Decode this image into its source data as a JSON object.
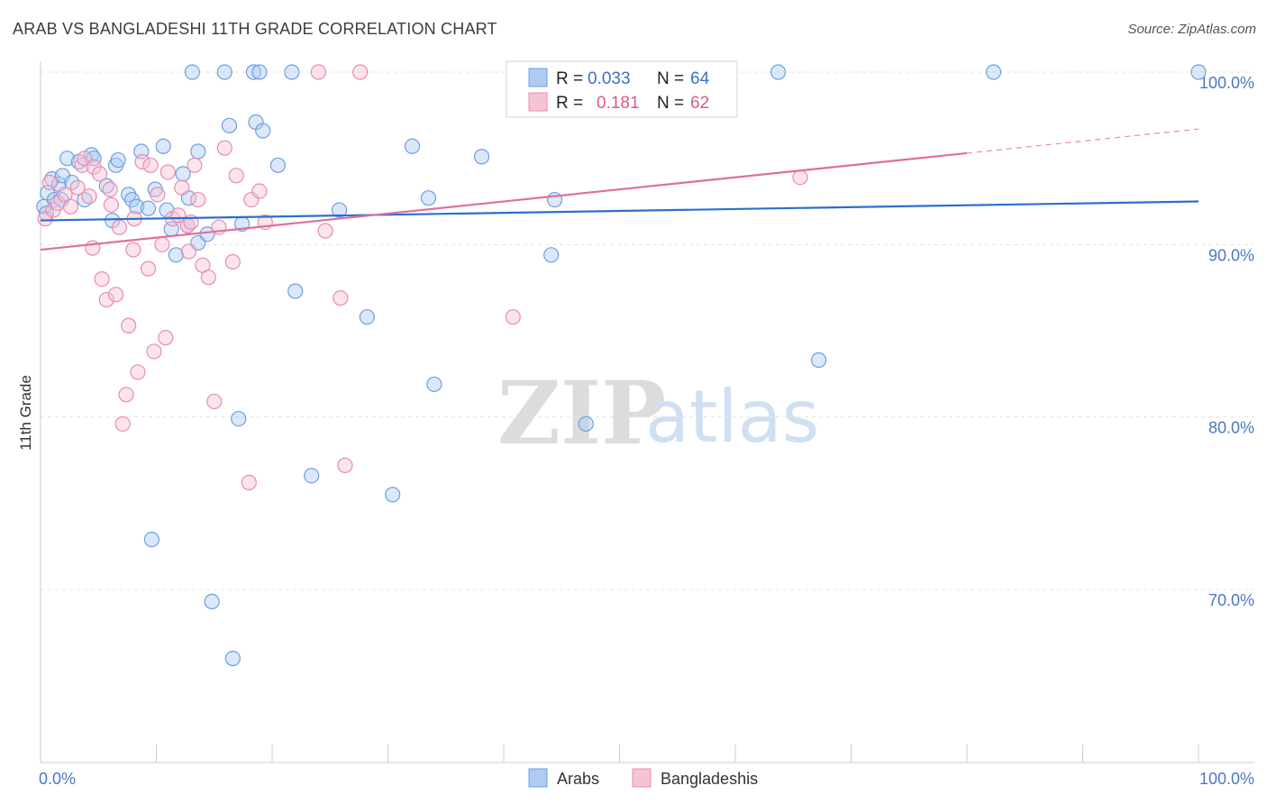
{
  "title": "ARAB VS BANGLADESHI 11TH GRADE CORRELATION CHART",
  "source": "Source: ZipAtlas.com",
  "watermark": {
    "zip": "ZIP",
    "atlas": "atlas"
  },
  "legend": {
    "r_label": "R =",
    "n_label": "N =",
    "rows": [
      {
        "series": "Arabs",
        "r": "0.033",
        "n": "64"
      },
      {
        "series": "Bangladeshis",
        "r": "0.181",
        "n": "62"
      }
    ]
  },
  "chart_data": {
    "type": "scatter",
    "title": "ARAB VS BANGLADESHI 11TH GRADE CORRELATION CHART",
    "xlabel": "",
    "ylabel": "11th Grade",
    "xlim": [
      0,
      100
    ],
    "ylim": [
      60.5,
      101.5
    ],
    "x_tick_labels": [
      "0.0%",
      "100.0%"
    ],
    "y_ticks": [
      70,
      80,
      90,
      100
    ],
    "y_tick_labels": [
      "70.0%",
      "80.0%",
      "90.0%",
      "100.0%"
    ],
    "grid": true,
    "legend_position": "top-center",
    "series": [
      {
        "name": "Arabs",
        "color": "#6f9fe0",
        "fill": "#aecbf1",
        "points": [
          [
            0.3,
            92.2
          ],
          [
            0.6,
            93.0
          ],
          [
            1.0,
            93.8
          ],
          [
            1.2,
            92.6
          ],
          [
            1.6,
            93.5
          ],
          [
            1.9,
            94.0
          ],
          [
            2.3,
            95.0
          ],
          [
            2.7,
            93.6
          ],
          [
            3.3,
            94.8
          ],
          [
            3.8,
            92.6
          ],
          [
            4.4,
            95.2
          ],
          [
            4.6,
            95.0
          ],
          [
            5.7,
            93.4
          ],
          [
            6.2,
            91.4
          ],
          [
            6.5,
            94.6
          ],
          [
            6.7,
            94.9
          ],
          [
            7.6,
            92.9
          ],
          [
            7.9,
            92.6
          ],
          [
            8.3,
            92.2
          ],
          [
            8.7,
            95.4
          ],
          [
            9.3,
            92.1
          ],
          [
            9.9,
            93.2
          ],
          [
            10.6,
            95.7
          ],
          [
            10.9,
            92.0
          ],
          [
            11.3,
            90.9
          ],
          [
            11.7,
            89.4
          ],
          [
            12.3,
            94.1
          ],
          [
            12.7,
            91.1
          ],
          [
            12.8,
            92.7
          ],
          [
            13.1,
            100.0
          ],
          [
            13.6,
            90.1
          ],
          [
            13.6,
            95.4
          ],
          [
            14.4,
            90.6
          ],
          [
            14.8,
            69.3
          ],
          [
            15.9,
            100.0
          ],
          [
            16.3,
            96.9
          ],
          [
            16.6,
            66.0
          ],
          [
            17.1,
            79.9
          ],
          [
            17.4,
            91.2
          ],
          [
            18.4,
            100.0
          ],
          [
            18.6,
            97.1
          ],
          [
            18.9,
            100.0
          ],
          [
            19.2,
            96.6
          ],
          [
            20.5,
            94.6
          ],
          [
            21.7,
            100.0
          ],
          [
            22.0,
            87.3
          ],
          [
            23.4,
            76.6
          ],
          [
            25.8,
            92.0
          ],
          [
            28.2,
            85.8
          ],
          [
            30.4,
            75.5
          ],
          [
            32.1,
            95.7
          ],
          [
            33.5,
            92.7
          ],
          [
            34.0,
            81.9
          ],
          [
            38.1,
            95.1
          ],
          [
            44.1,
            89.4
          ],
          [
            44.4,
            92.6
          ],
          [
            47.1,
            79.6
          ],
          [
            63.7,
            100.0
          ],
          [
            67.2,
            83.3
          ],
          [
            82.3,
            100.0
          ],
          [
            100.0,
            100.0
          ],
          [
            9.6,
            72.9
          ],
          [
            1.8,
            92.6
          ],
          [
            0.5,
            91.8
          ]
        ],
        "trend": {
          "x": [
            0,
            100
          ],
          "y": [
            91.4,
            92.5
          ]
        }
      },
      {
        "name": "Bangladeshis",
        "color": "#e98bb0",
        "fill": "#f6c3d6",
        "points": [
          [
            0.4,
            91.5
          ],
          [
            0.8,
            93.6
          ],
          [
            1.1,
            92.0
          ],
          [
            1.5,
            92.4
          ],
          [
            2.1,
            92.9
          ],
          [
            2.6,
            92.2
          ],
          [
            3.2,
            93.3
          ],
          [
            3.6,
            94.6
          ],
          [
            3.8,
            95.0
          ],
          [
            4.2,
            92.8
          ],
          [
            4.5,
            89.8
          ],
          [
            4.6,
            94.5
          ],
          [
            5.1,
            94.1
          ],
          [
            5.3,
            88.0
          ],
          [
            5.7,
            86.8
          ],
          [
            6.0,
            93.2
          ],
          [
            6.1,
            92.3
          ],
          [
            6.5,
            87.1
          ],
          [
            6.8,
            91.0
          ],
          [
            7.1,
            79.6
          ],
          [
            7.4,
            81.3
          ],
          [
            7.6,
            85.3
          ],
          [
            8.0,
            89.7
          ],
          [
            8.1,
            91.5
          ],
          [
            8.4,
            82.6
          ],
          [
            8.8,
            94.8
          ],
          [
            9.3,
            88.6
          ],
          [
            9.5,
            94.6
          ],
          [
            9.8,
            83.8
          ],
          [
            10.1,
            92.9
          ],
          [
            10.5,
            90.0
          ],
          [
            10.8,
            84.6
          ],
          [
            11.0,
            94.2
          ],
          [
            11.4,
            91.5
          ],
          [
            11.9,
            91.7
          ],
          [
            12.2,
            93.3
          ],
          [
            12.7,
            91.1
          ],
          [
            12.8,
            89.6
          ],
          [
            13.0,
            91.3
          ],
          [
            13.3,
            94.6
          ],
          [
            13.6,
            92.6
          ],
          [
            14.0,
            88.8
          ],
          [
            14.5,
            88.1
          ],
          [
            15.0,
            80.9
          ],
          [
            15.4,
            91.0
          ],
          [
            15.9,
            95.6
          ],
          [
            16.6,
            89.0
          ],
          [
            16.9,
            94.0
          ],
          [
            18.0,
            76.2
          ],
          [
            18.2,
            92.6
          ],
          [
            18.9,
            93.1
          ],
          [
            19.4,
            91.3
          ],
          [
            24.0,
            100.0
          ],
          [
            24.6,
            90.8
          ],
          [
            25.9,
            86.9
          ],
          [
            26.3,
            77.2
          ],
          [
            27.6,
            100.0
          ],
          [
            40.8,
            85.8
          ],
          [
            47.2,
            100.0
          ],
          [
            53.1,
            100.0
          ],
          [
            56.5,
            100.0
          ],
          [
            65.6,
            93.9
          ]
        ],
        "trend": {
          "x": [
            0,
            80
          ],
          "y": [
            89.7,
            95.3
          ]
        },
        "trend_dashed": {
          "x": [
            80,
            100
          ],
          "y": [
            95.3,
            96.7
          ]
        }
      }
    ]
  }
}
